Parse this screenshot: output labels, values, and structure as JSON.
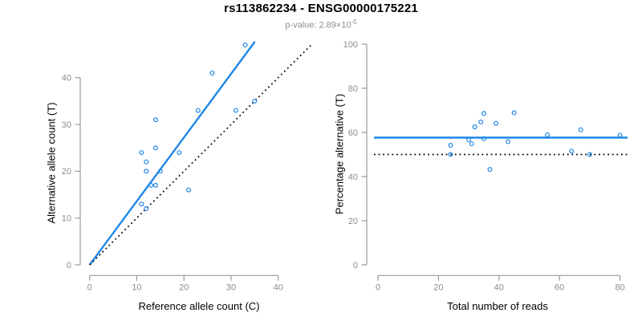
{
  "header": {
    "title": "rs113862234 - ENSG00000175221",
    "subtitle_prefix": "p-value: 2.89×10",
    "subtitle_exponent": "-5"
  },
  "colors": {
    "accent_blue": "#1f87e8",
    "axis_gray": "#999999",
    "tick_label_gray": "#8c8c8c",
    "line_black": "#000000"
  },
  "chart_data": [
    {
      "type": "scatter",
      "panel": "left",
      "xlabel": "Reference allele count (C)",
      "ylabel": "Alternative allele count (T)",
      "xlim": [
        0,
        47.3
      ],
      "ylim": [
        0,
        47.7
      ],
      "xticks": [
        0,
        10,
        20,
        30,
        40
      ],
      "yticks": [
        0,
        10,
        20,
        30,
        40
      ],
      "grid": false,
      "legend": null,
      "points": [
        [
          11,
          13
        ],
        [
          11,
          24
        ],
        [
          12,
          12
        ],
        [
          12,
          20
        ],
        [
          12,
          22
        ],
        [
          13,
          17
        ],
        [
          14,
          17
        ],
        [
          14,
          25
        ],
        [
          14,
          31
        ],
        [
          15,
          20
        ],
        [
          19,
          24
        ],
        [
          21,
          16
        ],
        [
          23,
          33
        ],
        [
          26,
          41
        ],
        [
          31,
          33
        ],
        [
          33,
          47
        ],
        [
          35,
          35
        ]
      ],
      "lines": [
        {
          "name": "regression-line",
          "kind": "ab",
          "intercept": 0,
          "slope": 1.3608,
          "style": "solid",
          "color_key": "accent_blue"
        },
        {
          "name": "identity-line",
          "kind": "ab",
          "intercept": 0,
          "slope": 1,
          "style": "dotted",
          "color_key": "line_black"
        }
      ]
    },
    {
      "type": "scatter",
      "panel": "right",
      "xlabel": "Total number of reads",
      "ylabel": "Percentage alternative (T)",
      "xlim": [
        0,
        82.5
      ],
      "ylim": [
        0,
        100
      ],
      "xticks": [
        0,
        20,
        40,
        60,
        80
      ],
      "yticks": [
        0,
        20,
        40,
        60,
        80,
        100
      ],
      "grid": false,
      "legend": null,
      "points": [
        [
          24,
          54.17
        ],
        [
          24,
          50
        ],
        [
          30,
          56.67
        ],
        [
          31,
          54.84
        ],
        [
          32,
          62.5
        ],
        [
          34,
          64.71
        ],
        [
          35,
          68.57
        ],
        [
          35,
          57.14
        ],
        [
          37,
          43.24
        ],
        [
          39,
          64.1
        ],
        [
          43,
          55.81
        ],
        [
          45,
          68.89
        ],
        [
          56,
          58.93
        ],
        [
          64,
          51.56
        ],
        [
          67,
          61.19
        ],
        [
          70,
          50
        ],
        [
          80,
          58.75
        ]
      ],
      "lines": [
        {
          "name": "mean-percentage-line",
          "kind": "h",
          "y": 57.64,
          "style": "solid",
          "color_key": "accent_blue"
        },
        {
          "name": "fifty-percent-line",
          "kind": "h",
          "y": 50,
          "style": "dotted",
          "color_key": "line_black"
        }
      ]
    }
  ]
}
